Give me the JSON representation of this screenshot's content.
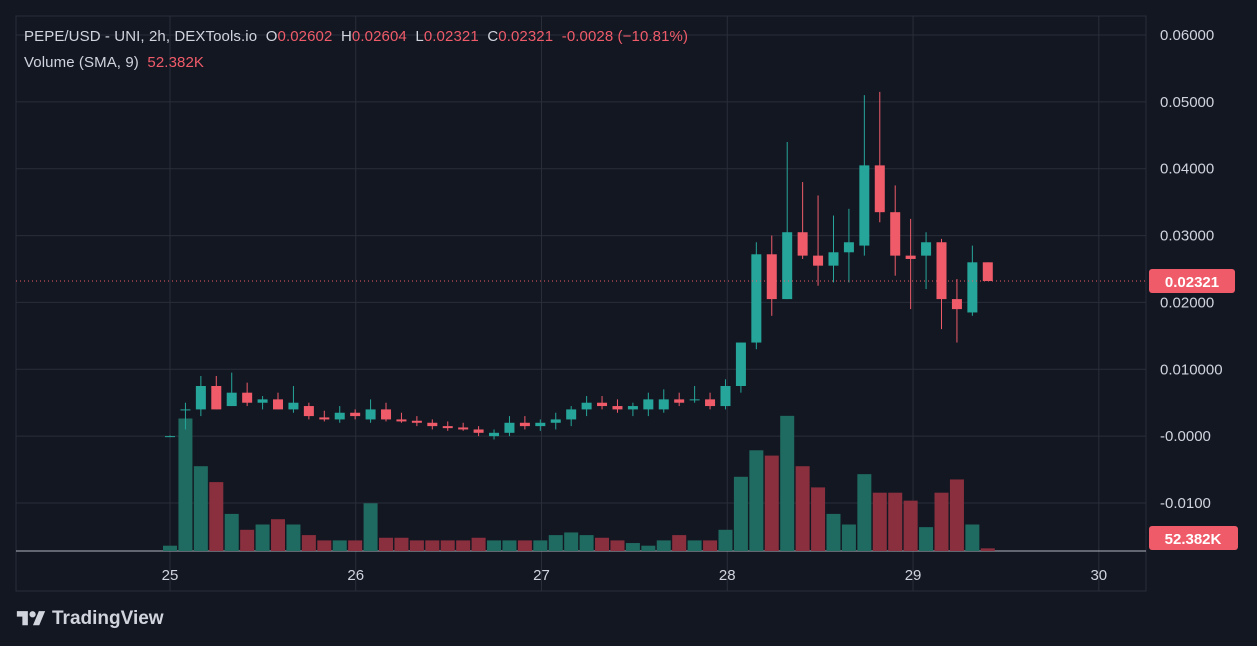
{
  "legend": {
    "symbol": "PEPE/USD - UNI, 2h, DEXTools.io",
    "o_label": "O",
    "o_value": "0.02602",
    "h_label": "H",
    "h_value": "0.02604",
    "l_label": "L",
    "l_value": "0.02321",
    "c_label": "C",
    "c_value": "0.02321",
    "change": "-0.0028 (−10.81%)",
    "volume_label": "Volume (SMA, 9)",
    "volume_value": "52.382K"
  },
  "branding": {
    "text": "TradingView",
    "icon": "tradingview-logo-icon"
  },
  "colors": {
    "background": "#131722",
    "grid": "#2a2e39",
    "up": "#26a69a",
    "down": "#f05b6a",
    "vol_up": "#1f6b61",
    "vol_down": "#8a2f3d",
    "text": "#d1d4dc"
  },
  "chart_data": {
    "type": "candlestick",
    "title": "PEPE/USD - UNI, 2h, DEXTools.io",
    "xlabel": "",
    "ylabel": "",
    "x_ticks": [
      "25",
      "26",
      "27",
      "28",
      "29",
      "30"
    ],
    "y_ticks": [
      "0.06000",
      "0.05000",
      "0.04000",
      "0.03000",
      "0.02000",
      "0.010000",
      "-0.0000",
      "-0.0100"
    ],
    "ylim": [
      -0.0175,
      0.0625
    ],
    "grid": true,
    "last_price_label": "0.02321",
    "last_volume_label": "52.382K",
    "candles": [
      {
        "o": 0.0,
        "h": 0.0001,
        "l": -0.0001,
        "c": 0.0
      },
      {
        "o": 0.004,
        "h": 0.005,
        "l": 0.001,
        "c": 0.004
      },
      {
        "o": 0.004,
        "h": 0.009,
        "l": 0.003,
        "c": 0.0075
      },
      {
        "o": 0.0075,
        "h": 0.009,
        "l": 0.004,
        "c": 0.004
      },
      {
        "o": 0.0045,
        "h": 0.0095,
        "l": 0.0045,
        "c": 0.0065
      },
      {
        "o": 0.0065,
        "h": 0.008,
        "l": 0.0045,
        "c": 0.005
      },
      {
        "o": 0.005,
        "h": 0.006,
        "l": 0.004,
        "c": 0.0055
      },
      {
        "o": 0.0055,
        "h": 0.0065,
        "l": 0.004,
        "c": 0.004
      },
      {
        "o": 0.004,
        "h": 0.0075,
        "l": 0.0035,
        "c": 0.005
      },
      {
        "o": 0.0045,
        "h": 0.005,
        "l": 0.0025,
        "c": 0.003
      },
      {
        "o": 0.0028,
        "h": 0.0038,
        "l": 0.0022,
        "c": 0.0025
      },
      {
        "o": 0.0025,
        "h": 0.0045,
        "l": 0.002,
        "c": 0.0035
      },
      {
        "o": 0.0035,
        "h": 0.004,
        "l": 0.0025,
        "c": 0.003
      },
      {
        "o": 0.0025,
        "h": 0.0055,
        "l": 0.002,
        "c": 0.004
      },
      {
        "o": 0.004,
        "h": 0.005,
        "l": 0.0022,
        "c": 0.0025
      },
      {
        "o": 0.0025,
        "h": 0.0035,
        "l": 0.002,
        "c": 0.0022
      },
      {
        "o": 0.0023,
        "h": 0.003,
        "l": 0.0015,
        "c": 0.002
      },
      {
        "o": 0.002,
        "h": 0.0025,
        "l": 0.001,
        "c": 0.0015
      },
      {
        "o": 0.0015,
        "h": 0.0022,
        "l": 0.0008,
        "c": 0.0012
      },
      {
        "o": 0.0013,
        "h": 0.002,
        "l": 0.0008,
        "c": 0.001
      },
      {
        "o": 0.001,
        "h": 0.0015,
        "l": 0.0,
        "c": 0.0005
      },
      {
        "o": 0.0,
        "h": 0.001,
        "l": -0.0005,
        "c": 0.0005
      },
      {
        "o": 0.0005,
        "h": 0.003,
        "l": 0.0,
        "c": 0.002
      },
      {
        "o": 0.002,
        "h": 0.003,
        "l": 0.001,
        "c": 0.0015
      },
      {
        "o": 0.0015,
        "h": 0.0025,
        "l": 0.0008,
        "c": 0.002
      },
      {
        "o": 0.002,
        "h": 0.0035,
        "l": 0.001,
        "c": 0.0025
      },
      {
        "o": 0.0025,
        "h": 0.0045,
        "l": 0.0015,
        "c": 0.004
      },
      {
        "o": 0.004,
        "h": 0.006,
        "l": 0.003,
        "c": 0.005
      },
      {
        "o": 0.005,
        "h": 0.006,
        "l": 0.004,
        "c": 0.0045
      },
      {
        "o": 0.0045,
        "h": 0.0055,
        "l": 0.0035,
        "c": 0.004
      },
      {
        "o": 0.004,
        "h": 0.005,
        "l": 0.003,
        "c": 0.0045
      },
      {
        "o": 0.004,
        "h": 0.0065,
        "l": 0.003,
        "c": 0.0055
      },
      {
        "o": 0.004,
        "h": 0.007,
        "l": 0.0035,
        "c": 0.0055
      },
      {
        "o": 0.0055,
        "h": 0.0065,
        "l": 0.0045,
        "c": 0.005
      },
      {
        "o": 0.0055,
        "h": 0.0075,
        "l": 0.005,
        "c": 0.0055
      },
      {
        "o": 0.0055,
        "h": 0.0065,
        "l": 0.004,
        "c": 0.0045
      },
      {
        "o": 0.0045,
        "h": 0.0085,
        "l": 0.004,
        "c": 0.0075
      },
      {
        "o": 0.0075,
        "h": 0.014,
        "l": 0.0065,
        "c": 0.014
      },
      {
        "o": 0.014,
        "h": 0.029,
        "l": 0.013,
        "c": 0.0272
      },
      {
        "o": 0.0272,
        "h": 0.03,
        "l": 0.018,
        "c": 0.0205
      },
      {
        "o": 0.0205,
        "h": 0.044,
        "l": 0.0205,
        "c": 0.0305
      },
      {
        "o": 0.0305,
        "h": 0.038,
        "l": 0.0265,
        "c": 0.027
      },
      {
        "o": 0.027,
        "h": 0.036,
        "l": 0.0225,
        "c": 0.0255
      },
      {
        "o": 0.0255,
        "h": 0.033,
        "l": 0.023,
        "c": 0.0275
      },
      {
        "o": 0.0275,
        "h": 0.034,
        "l": 0.023,
        "c": 0.029
      },
      {
        "o": 0.0285,
        "h": 0.051,
        "l": 0.027,
        "c": 0.0405
      },
      {
        "o": 0.0405,
        "h": 0.0515,
        "l": 0.032,
        "c": 0.0335
      },
      {
        "o": 0.0335,
        "h": 0.0375,
        "l": 0.024,
        "c": 0.027
      },
      {
        "o": 0.027,
        "h": 0.0325,
        "l": 0.019,
        "c": 0.0265
      },
      {
        "o": 0.027,
        "h": 0.0305,
        "l": 0.022,
        "c": 0.029
      },
      {
        "o": 0.029,
        "h": 0.0295,
        "l": 0.016,
        "c": 0.0205
      },
      {
        "o": 0.0205,
        "h": 0.0235,
        "l": 0.014,
        "c": 0.019
      },
      {
        "o": 0.0185,
        "h": 0.0285,
        "l": 0.018,
        "c": 0.026
      },
      {
        "o": 0.026,
        "h": 0.026,
        "l": 0.0232,
        "c": 0.0232
      }
    ],
    "volume": [
      1.0,
      25.0,
      16.0,
      13.0,
      7.0,
      4.0,
      5.0,
      6.0,
      5.0,
      3.0,
      2.0,
      2.0,
      2.0,
      9.0,
      2.5,
      2.5,
      2.0,
      2.0,
      2.0,
      2.0,
      2.5,
      2.0,
      2.0,
      2.0,
      2.0,
      3.0,
      3.5,
      3.0,
      2.5,
      2.0,
      1.5,
      1.0,
      2.0,
      3.0,
      2.0,
      2.0,
      4.0,
      14.0,
      19.0,
      18.0,
      25.5,
      16.0,
      12.0,
      7.0,
      5.0,
      14.5,
      11.0,
      11.0,
      9.5,
      4.5,
      11.0,
      13.5,
      5.0,
      0.5
    ]
  }
}
